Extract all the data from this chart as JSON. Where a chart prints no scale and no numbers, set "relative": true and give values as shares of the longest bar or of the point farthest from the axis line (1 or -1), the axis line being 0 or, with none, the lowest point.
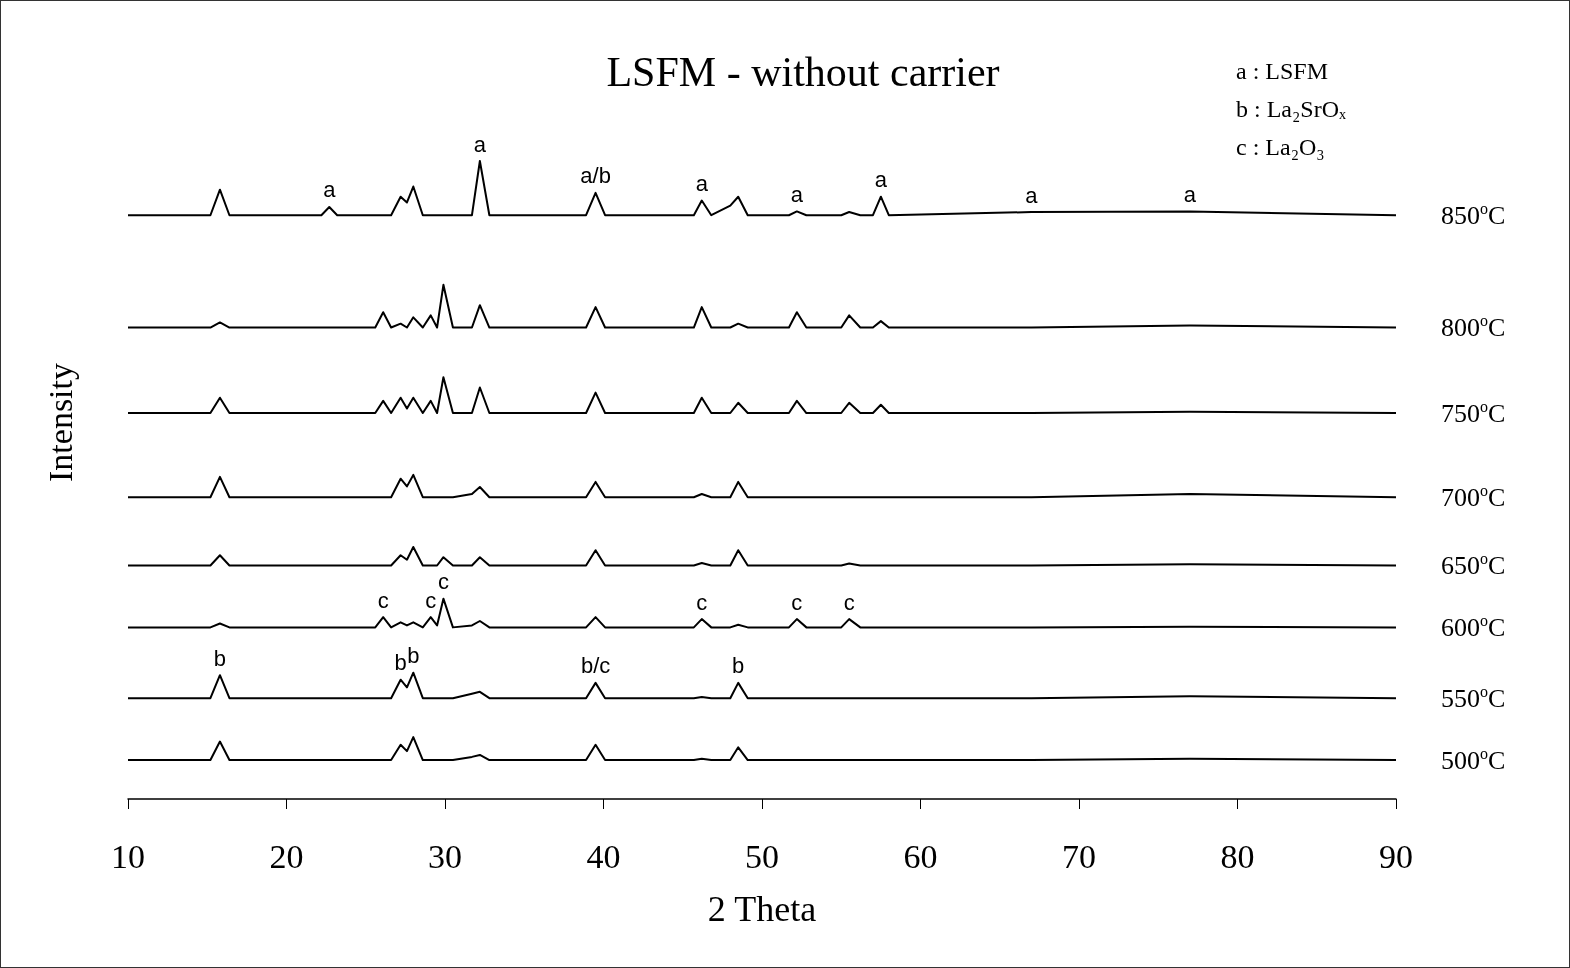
{
  "chart_data": {
    "type": "line",
    "title": "LSFM - without carrier",
    "xlabel": "2 Theta",
    "ylabel": "Intensity",
    "relative": true,
    "grid": false,
    "legend": false,
    "marker": "none",
    "line_style": "solid",
    "xlim": [
      10,
      90
    ],
    "xticks": [
      10,
      20,
      30,
      40,
      50,
      60,
      70,
      80,
      90
    ],
    "x": [
      10,
      15.2,
      15.8,
      16.4,
      22.2,
      22.7,
      23.2,
      25.6,
      26.1,
      26.6,
      27.2,
      27.6,
      28,
      28.6,
      29.1,
      29.5,
      29.9,
      30.5,
      31.7,
      32.2,
      32.8,
      38.9,
      39.5,
      40.1,
      45.7,
      46.2,
      46.8,
      48,
      48.5,
      49.1,
      51.7,
      52.2,
      52.8,
      55,
      55.5,
      56.2,
      57,
      57.5,
      58,
      67,
      77,
      90
    ],
    "series": [
      {
        "name": "850$^{o}$C",
        "color": "#000000",
        "values": [
          0.915,
          0.915,
          0.955,
          0.915,
          0.915,
          0.928,
          0.915,
          0.915,
          0.915,
          0.915,
          0.944,
          0.935,
          0.96,
          0.915,
          0.915,
          0.915,
          0.915,
          0.915,
          0.915,
          1.0,
          0.915,
          0.915,
          0.95,
          0.915,
          0.915,
          0.938,
          0.915,
          0.93,
          0.944,
          0.915,
          0.915,
          0.921,
          0.915,
          0.915,
          0.92,
          0.915,
          0.915,
          0.944,
          0.915,
          0.92,
          0.921,
          0.915
        ]
      },
      {
        "name": "800$^{o}$C",
        "color": "#000000",
        "values": [
          0.739,
          0.739,
          0.747,
          0.739,
          0.739,
          0.739,
          0.739,
          0.739,
          0.763,
          0.739,
          0.745,
          0.739,
          0.755,
          0.739,
          0.758,
          0.739,
          0.806,
          0.739,
          0.739,
          0.774,
          0.739,
          0.739,
          0.771,
          0.739,
          0.739,
          0.771,
          0.739,
          0.739,
          0.745,
          0.739,
          0.739,
          0.763,
          0.739,
          0.739,
          0.758,
          0.739,
          0.739,
          0.749,
          0.739,
          0.739,
          0.742,
          0.739
        ]
      },
      {
        "name": "750$^{o}$C",
        "color": "#000000",
        "values": [
          0.605,
          0.605,
          0.629,
          0.605,
          0.605,
          0.605,
          0.605,
          0.605,
          0.624,
          0.605,
          0.629,
          0.612,
          0.629,
          0.605,
          0.624,
          0.605,
          0.661,
          0.605,
          0.605,
          0.645,
          0.605,
          0.605,
          0.637,
          0.605,
          0.605,
          0.629,
          0.605,
          0.605,
          0.621,
          0.605,
          0.605,
          0.624,
          0.605,
          0.605,
          0.621,
          0.605,
          0.605,
          0.618,
          0.605,
          0.605,
          0.607,
          0.605
        ]
      },
      {
        "name": "700$^{o}$C",
        "color": "#000000",
        "values": [
          0.473,
          0.473,
          0.505,
          0.473,
          0.473,
          0.473,
          0.473,
          0.473,
          0.473,
          0.473,
          0.502,
          0.49,
          0.508,
          0.473,
          0.473,
          0.473,
          0.473,
          0.473,
          0.478,
          0.489,
          0.473,
          0.473,
          0.497,
          0.473,
          0.473,
          0.478,
          0.473,
          0.473,
          0.497,
          0.473,
          0.473,
          0.473,
          0.473,
          0.473,
          0.473,
          0.473,
          0.473,
          0.473,
          0.473,
          0.473,
          0.478,
          0.473
        ]
      },
      {
        "name": "650$^{o}$C",
        "color": "#000000",
        "values": [
          0.366,
          0.366,
          0.382,
          0.366,
          0.366,
          0.366,
          0.366,
          0.366,
          0.366,
          0.366,
          0.382,
          0.375,
          0.395,
          0.366,
          0.366,
          0.366,
          0.379,
          0.366,
          0.366,
          0.379,
          0.366,
          0.366,
          0.39,
          0.366,
          0.366,
          0.37,
          0.366,
          0.366,
          0.39,
          0.366,
          0.366,
          0.366,
          0.366,
          0.366,
          0.369,
          0.366,
          0.366,
          0.366,
          0.366,
          0.366,
          0.368,
          0.366
        ]
      },
      {
        "name": "600$^{o}$C",
        "color": "#000000",
        "values": [
          0.269,
          0.269,
          0.275,
          0.269,
          0.269,
          0.269,
          0.269,
          0.269,
          0.285,
          0.269,
          0.277,
          0.272,
          0.277,
          0.269,
          0.285,
          0.272,
          0.314,
          0.269,
          0.272,
          0.279,
          0.269,
          0.269,
          0.285,
          0.269,
          0.269,
          0.282,
          0.269,
          0.269,
          0.273,
          0.269,
          0.269,
          0.282,
          0.269,
          0.269,
          0.282,
          0.269,
          0.269,
          0.269,
          0.269,
          0.269,
          0.27,
          0.269
        ]
      },
      {
        "name": "550$^{o}$C",
        "color": "#000000",
        "values": [
          0.158,
          0.158,
          0.194,
          0.158,
          0.158,
          0.158,
          0.158,
          0.158,
          0.158,
          0.158,
          0.187,
          0.175,
          0.198,
          0.158,
          0.158,
          0.158,
          0.158,
          0.158,
          0.165,
          0.168,
          0.158,
          0.158,
          0.182,
          0.158,
          0.158,
          0.16,
          0.158,
          0.158,
          0.182,
          0.158,
          0.158,
          0.158,
          0.158,
          0.158,
          0.158,
          0.158,
          0.158,
          0.158,
          0.158,
          0.158,
          0.161,
          0.158
        ]
      },
      {
        "name": "500$^{o}$C",
        "color": "#000000",
        "values": [
          0.061,
          0.061,
          0.09,
          0.061,
          0.061,
          0.061,
          0.061,
          0.061,
          0.061,
          0.061,
          0.085,
          0.075,
          0.097,
          0.061,
          0.061,
          0.061,
          0.061,
          0.061,
          0.066,
          0.069,
          0.061,
          0.061,
          0.085,
          0.061,
          0.061,
          0.063,
          0.061,
          0.061,
          0.081,
          0.061,
          0.061,
          0.061,
          0.061,
          0.061,
          0.061,
          0.061,
          0.061,
          0.061,
          0.061,
          0.061,
          0.063,
          0.061
        ]
      }
    ],
    "annotations": [
      "a : LSFM",
      "b : La₂SrOₓ",
      "c : La₂O₃",
      {
        "text": "a",
        "x": 22.7,
        "y": 0.928
      },
      {
        "text": "a",
        "x": 32.2,
        "y": 1.0
      },
      {
        "text": "a/b",
        "x": 39.5,
        "y": 0.95
      },
      {
        "text": "a",
        "x": 46.2,
        "y": 0.938
      },
      {
        "text": "a",
        "x": 52.2,
        "y": 0.921
      },
      {
        "text": "a",
        "x": 57.5,
        "y": 0.944
      },
      {
        "text": "a",
        "x": 67,
        "y": 0.92
      },
      {
        "text": "a",
        "x": 77,
        "y": 0.921
      },
      {
        "text": "c",
        "x": 26.1,
        "y": 0.285
      },
      {
        "text": "c",
        "x": 29.1,
        "y": 0.285
      },
      {
        "text": "c",
        "x": 29.9,
        "y": 0.314
      },
      {
        "text": "c",
        "x": 46.2,
        "y": 0.282
      },
      {
        "text": "c",
        "x": 52.2,
        "y": 0.282
      },
      {
        "text": "c",
        "x": 55.5,
        "y": 0.282
      },
      {
        "text": "b",
        "x": 15.8,
        "y": 0.194
      },
      {
        "text": "b",
        "x": 27.2,
        "y": 0.187
      },
      {
        "text": "b",
        "x": 28,
        "y": 0.198
      },
      {
        "text": "b/c",
        "x": 39.5,
        "y": 0.182
      },
      {
        "text": "b",
        "x": 48.5,
        "y": 0.182
      }
    ]
  }
}
